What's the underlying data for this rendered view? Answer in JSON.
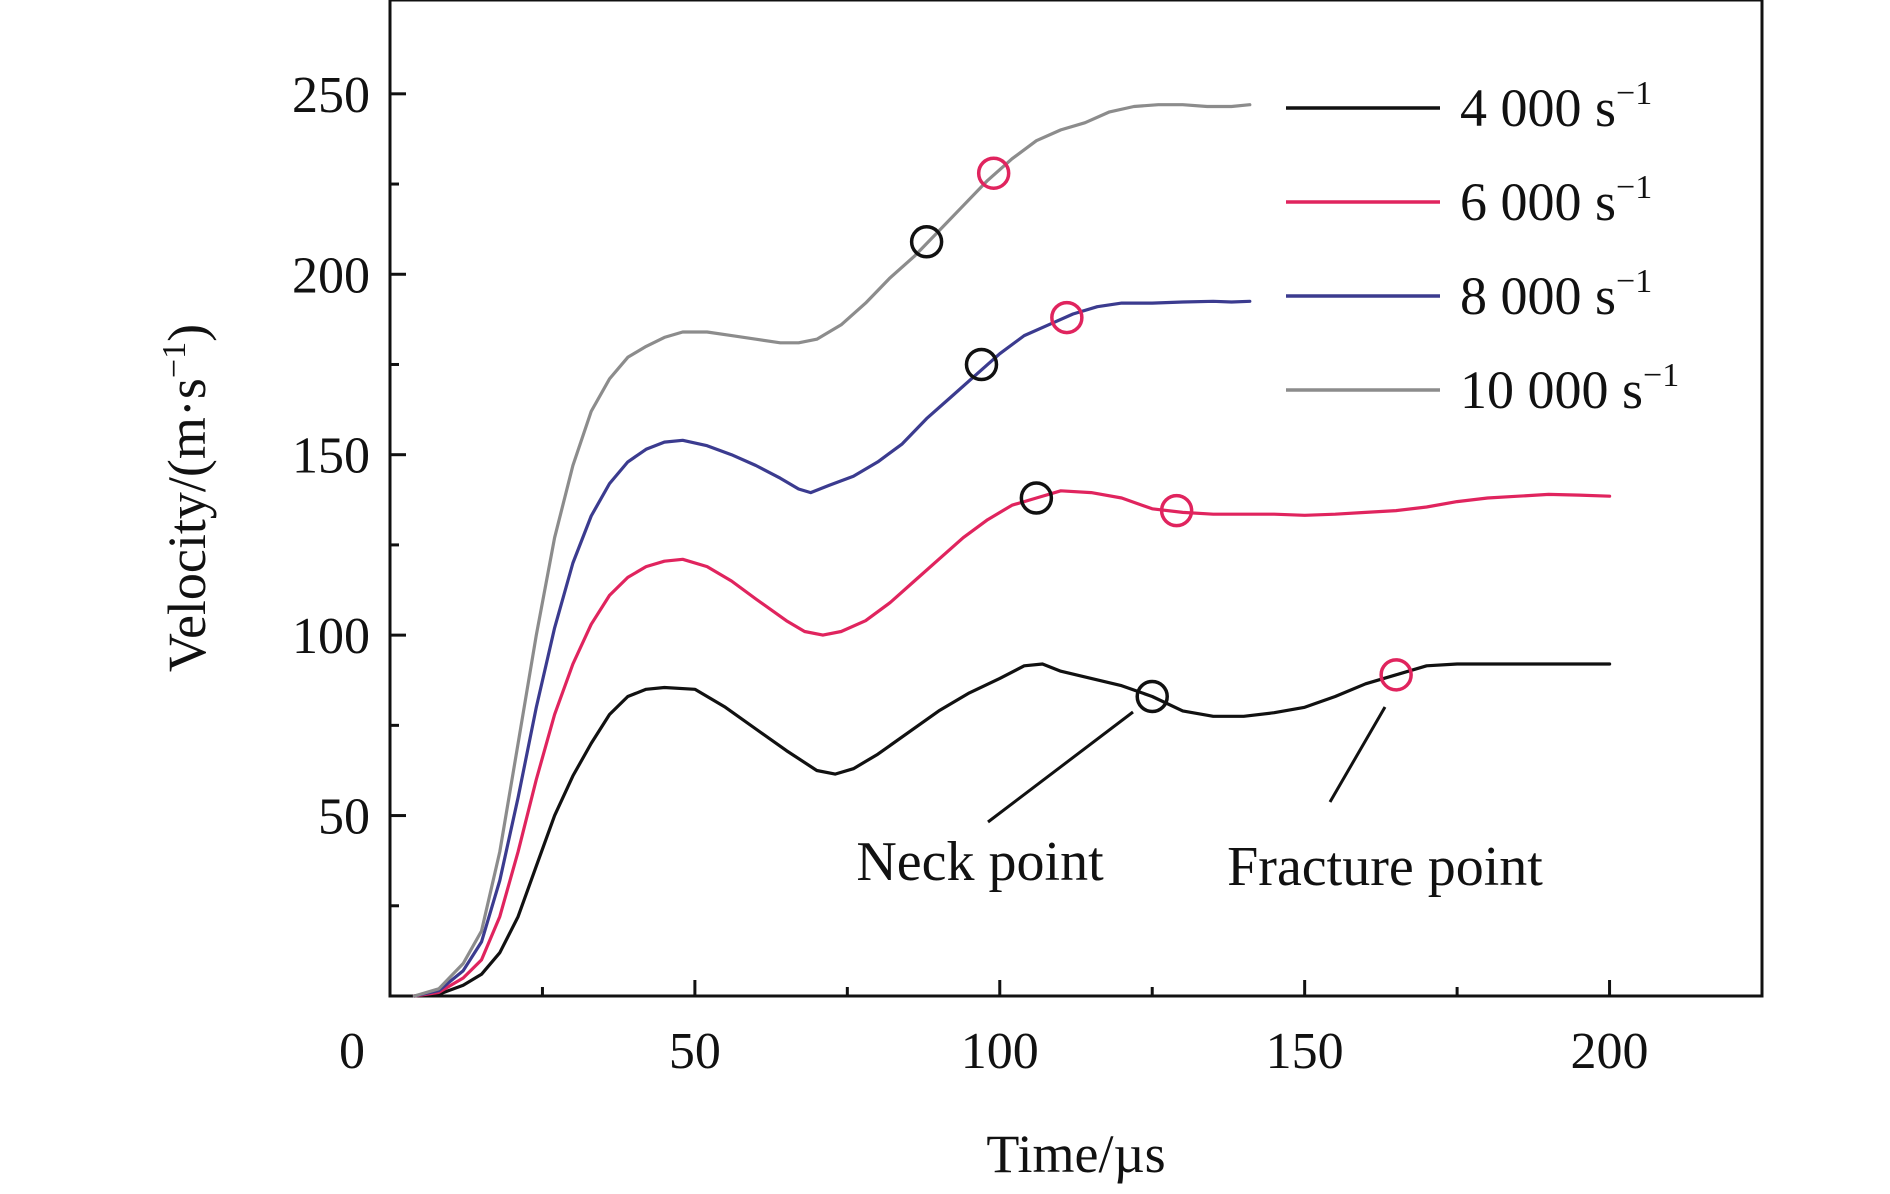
{
  "chart_data": {
    "type": "line",
    "xlabel": "Time/µs",
    "ylabel": "Velocity/(m·s",
    "ylabel_sup": "−1",
    "ylabel_close": ")",
    "xlim": [
      0,
      225
    ],
    "ylim": [
      0,
      250
    ],
    "x_ticks": [
      0,
      50,
      100,
      150,
      200
    ],
    "x_tick_labels": [
      "0",
      "50",
      "100",
      "150",
      "200"
    ],
    "y_ticks": [
      50,
      100,
      150,
      200,
      250
    ],
    "y_tick_labels": [
      "50",
      "100",
      "150",
      "200",
      "250"
    ],
    "grid": false,
    "legend_position": "top-right",
    "series": [
      {
        "name": "4 000 s",
        "name_sup": "−1",
        "color": "#111111",
        "points": [
          [
            4,
            0
          ],
          [
            8,
            0.5
          ],
          [
            12,
            3
          ],
          [
            15,
            6
          ],
          [
            18,
            12
          ],
          [
            21,
            22
          ],
          [
            24,
            36
          ],
          [
            27,
            50
          ],
          [
            30,
            61
          ],
          [
            33,
            70
          ],
          [
            36,
            78
          ],
          [
            39,
            83
          ],
          [
            42,
            85
          ],
          [
            45,
            85.5
          ],
          [
            50,
            85
          ],
          [
            55,
            80
          ],
          [
            60,
            74
          ],
          [
            65,
            68
          ],
          [
            70,
            62.5
          ],
          [
            73,
            61.5
          ],
          [
            76,
            63
          ],
          [
            80,
            67
          ],
          [
            85,
            73
          ],
          [
            90,
            79
          ],
          [
            95,
            84
          ],
          [
            100,
            88
          ],
          [
            104,
            91.5
          ],
          [
            107,
            92
          ],
          [
            110,
            90
          ],
          [
            115,
            88
          ],
          [
            120,
            86
          ],
          [
            125,
            83
          ],
          [
            130,
            79
          ],
          [
            135,
            77.5
          ],
          [
            140,
            77.5
          ],
          [
            145,
            78.5
          ],
          [
            150,
            80
          ],
          [
            155,
            83
          ],
          [
            160,
            86.5
          ],
          [
            165,
            89
          ],
          [
            170,
            91.5
          ],
          [
            175,
            92
          ],
          [
            180,
            92
          ],
          [
            185,
            92
          ],
          [
            190,
            92
          ],
          [
            195,
            92
          ],
          [
            200,
            92
          ]
        ],
        "neck_point": [
          125,
          83
        ],
        "fracture_point": [
          165,
          89
        ]
      },
      {
        "name": "6 000 s",
        "name_sup": "−1",
        "color": "#e0245e",
        "points": [
          [
            4,
            0
          ],
          [
            8,
            1
          ],
          [
            12,
            5
          ],
          [
            15,
            10
          ],
          [
            18,
            22
          ],
          [
            21,
            40
          ],
          [
            24,
            60
          ],
          [
            27,
            78
          ],
          [
            30,
            92
          ],
          [
            33,
            103
          ],
          [
            36,
            111
          ],
          [
            39,
            116
          ],
          [
            42,
            119
          ],
          [
            45,
            120.5
          ],
          [
            48,
            121
          ],
          [
            52,
            119
          ],
          [
            56,
            115
          ],
          [
            60,
            110
          ],
          [
            65,
            104
          ],
          [
            68,
            101
          ],
          [
            71,
            100
          ],
          [
            74,
            101
          ],
          [
            78,
            104
          ],
          [
            82,
            109
          ],
          [
            86,
            115
          ],
          [
            90,
            121
          ],
          [
            94,
            127
          ],
          [
            98,
            132
          ],
          [
            102,
            136
          ],
          [
            106,
            138
          ],
          [
            110,
            140
          ],
          [
            115,
            139.5
          ],
          [
            120,
            138
          ],
          [
            125,
            135
          ],
          [
            130,
            134
          ],
          [
            135,
            133.5
          ],
          [
            140,
            133.5
          ],
          [
            145,
            133.5
          ],
          [
            150,
            133.2
          ],
          [
            155,
            133.5
          ],
          [
            160,
            134
          ],
          [
            165,
            134.5
          ],
          [
            170,
            135.5
          ],
          [
            175,
            137
          ],
          [
            180,
            138
          ],
          [
            185,
            138.5
          ],
          [
            190,
            139
          ],
          [
            195,
            138.8
          ],
          [
            200,
            138.5
          ]
        ],
        "neck_point": [
          106,
          138
        ],
        "fracture_point": [
          129,
          134.5
        ]
      },
      {
        "name": "8 000 s",
        "name_sup": "−1",
        "color": "#3b3b8f",
        "points": [
          [
            4,
            0
          ],
          [
            8,
            1.5
          ],
          [
            12,
            7
          ],
          [
            15,
            15
          ],
          [
            18,
            32
          ],
          [
            21,
            55
          ],
          [
            24,
            80
          ],
          [
            27,
            102
          ],
          [
            30,
            120
          ],
          [
            33,
            133
          ],
          [
            36,
            142
          ],
          [
            39,
            148
          ],
          [
            42,
            151.5
          ],
          [
            45,
            153.5
          ],
          [
            48,
            154
          ],
          [
            52,
            152.5
          ],
          [
            56,
            150
          ],
          [
            60,
            147
          ],
          [
            64,
            143.5
          ],
          [
            67,
            140.5
          ],
          [
            69,
            139.5
          ],
          [
            72,
            141.5
          ],
          [
            76,
            144
          ],
          [
            80,
            148
          ],
          [
            84,
            153
          ],
          [
            88,
            160
          ],
          [
            92,
            166
          ],
          [
            96,
            172
          ],
          [
            100,
            178
          ],
          [
            104,
            183
          ],
          [
            108,
            186
          ],
          [
            112,
            189
          ],
          [
            116,
            191
          ],
          [
            120,
            192
          ],
          [
            125,
            192
          ],
          [
            130,
            192.3
          ],
          [
            135,
            192.5
          ],
          [
            138,
            192.3
          ],
          [
            141,
            192.5
          ]
        ],
        "neck_point": [
          97,
          175
        ],
        "fracture_point": [
          111,
          188
        ]
      },
      {
        "name": "10 000 s",
        "name_sup": "−1",
        "color": "#8c8c8c",
        "points": [
          [
            4,
            0
          ],
          [
            8,
            2
          ],
          [
            12,
            9
          ],
          [
            15,
            18
          ],
          [
            18,
            40
          ],
          [
            21,
            70
          ],
          [
            24,
            100
          ],
          [
            27,
            127
          ],
          [
            30,
            147
          ],
          [
            33,
            162
          ],
          [
            36,
            171
          ],
          [
            39,
            177
          ],
          [
            42,
            180
          ],
          [
            45,
            182.5
          ],
          [
            48,
            184
          ],
          [
            52,
            184
          ],
          [
            56,
            183
          ],
          [
            60,
            182
          ],
          [
            64,
            181
          ],
          [
            67,
            181
          ],
          [
            70,
            182
          ],
          [
            74,
            186
          ],
          [
            78,
            192
          ],
          [
            82,
            199
          ],
          [
            86,
            205
          ],
          [
            90,
            212
          ],
          [
            94,
            219
          ],
          [
            98,
            226
          ],
          [
            102,
            232
          ],
          [
            106,
            237
          ],
          [
            110,
            240
          ],
          [
            114,
            242
          ],
          [
            118,
            245
          ],
          [
            122,
            246.5
          ],
          [
            126,
            247
          ],
          [
            130,
            247
          ],
          [
            134,
            246.5
          ],
          [
            138,
            246.5
          ],
          [
            141,
            247
          ]
        ],
        "neck_point": [
          88,
          209
        ],
        "fracture_point": [
          99,
          228
        ]
      }
    ],
    "annotations": {
      "neck_label": "Neck point",
      "fracture_label": "Fracture point"
    }
  }
}
